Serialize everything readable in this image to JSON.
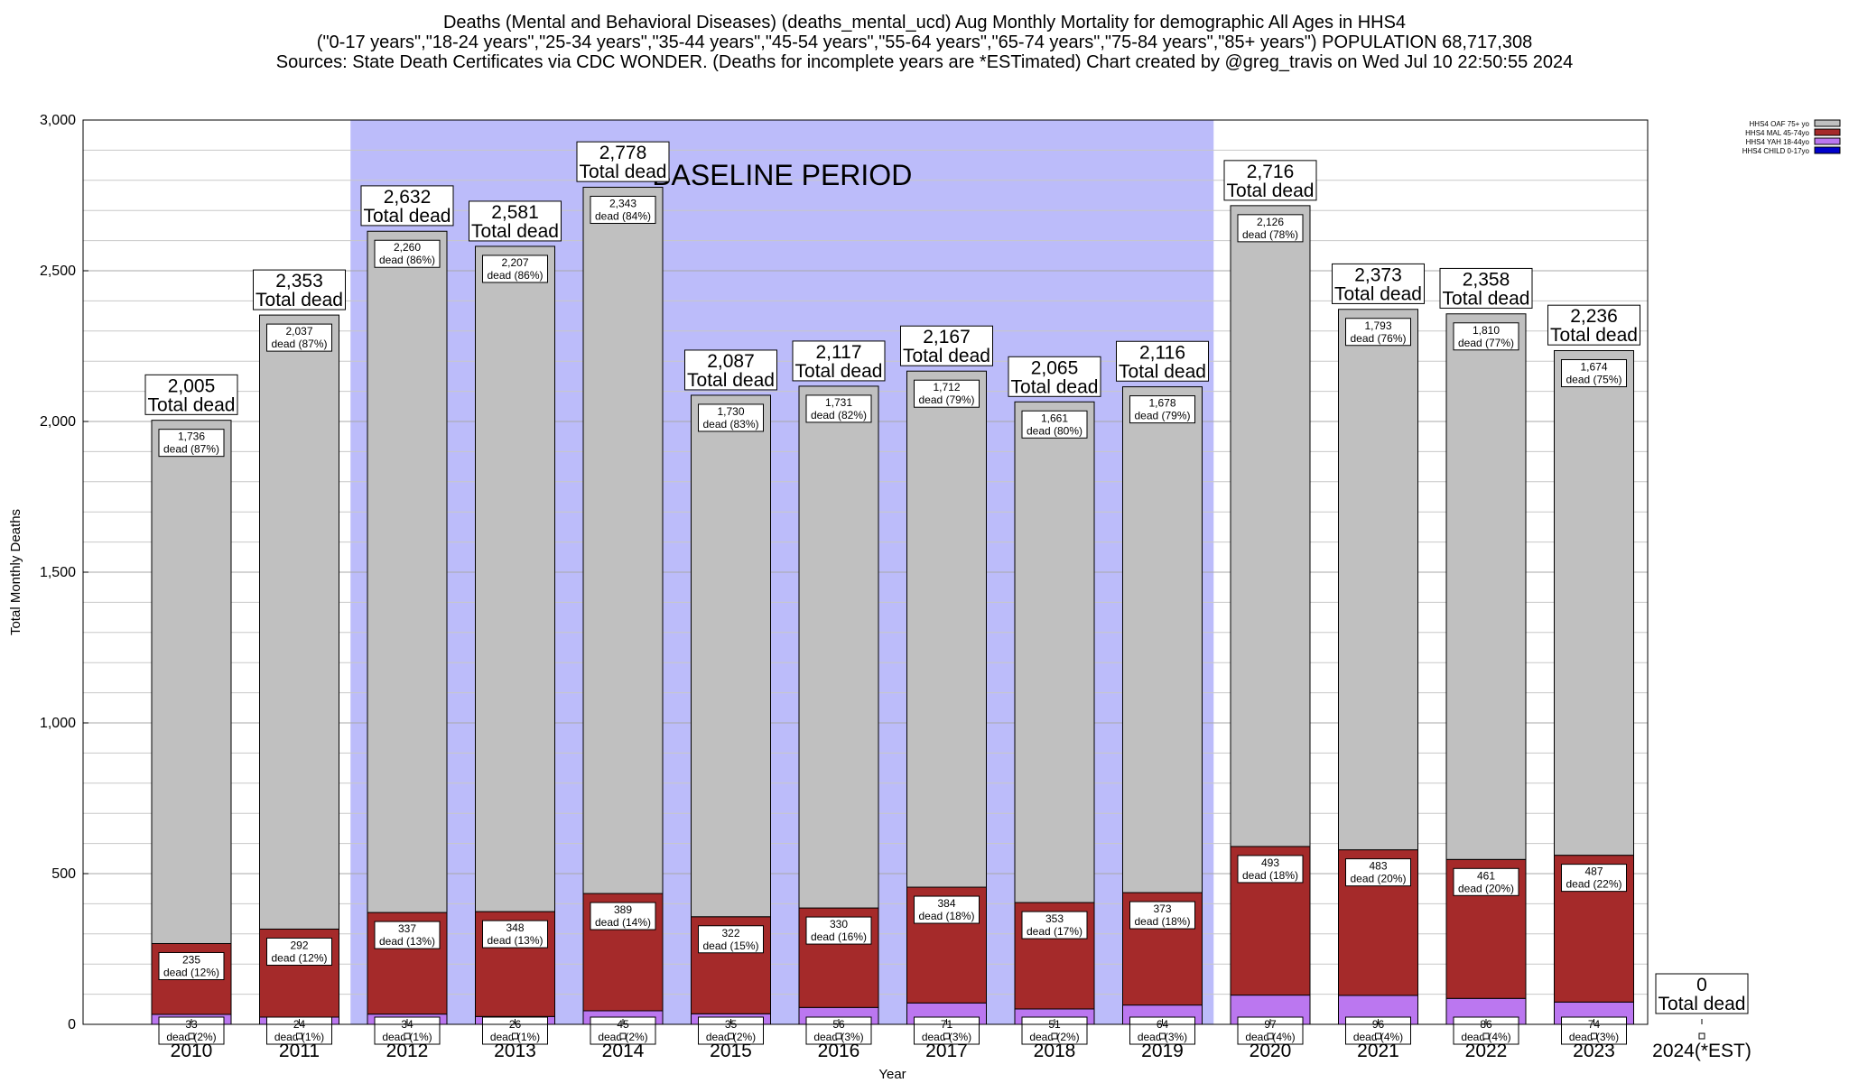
{
  "header": {
    "line1": "Deaths (Mental and Behavioral Diseases) (deaths_mental_ucd) Aug Monthly Mortality for demographic All Ages in HHS4",
    "line2": "(\"0-17 years\",\"18-24 years\",\"25-34 years\",\"35-44 years\",\"45-54 years\",\"55-64 years\",\"65-74 years\",\"75-84 years\",\"85+ years\") POPULATION 68,717,308",
    "line3": "Sources: State Death Certificates via CDC WONDER. (Deaths for incomplete years are *ESTimated)                Chart created by @greg_travis on Wed Jul 10 22:50:55 2024"
  },
  "chart_data": {
    "type": "bar",
    "stacked": true,
    "xlabel": "Year",
    "ylabel": "Total Monthly Deaths",
    "ylim": [
      0,
      3000
    ],
    "yticks": [
      0,
      500,
      1000,
      1500,
      2000,
      2500,
      3000
    ],
    "ytick_labels": [
      "0",
      "500",
      "1,000",
      "1,500",
      "2,000",
      "2,500",
      "3,000"
    ],
    "grid": true,
    "legend_position": "top-right",
    "baseline": {
      "label": "BASELINE PERIOD",
      "from": "2012",
      "to": "2019",
      "color": "#bcbcfa"
    },
    "categories": [
      "2010",
      "2011",
      "2012",
      "2013",
      "2014",
      "2015",
      "2016",
      "2017",
      "2018",
      "2019",
      "2020",
      "2021",
      "2022",
      "2023",
      "2024(*EST)"
    ],
    "total_suffix": "Total dead",
    "totals": [
      2005,
      2353,
      2632,
      2581,
      2778,
      2087,
      2117,
      2167,
      2065,
      2116,
      2716,
      2373,
      2358,
      2236,
      0
    ],
    "total_labels": [
      "2,005",
      "2,353",
      "2,632",
      "2,581",
      "2,778",
      "2,087",
      "2,117",
      "2,167",
      "2,065",
      "2,116",
      "2,716",
      "2,373",
      "2,358",
      "2,236",
      "0"
    ],
    "series": [
      {
        "name": "HHS4 CHILD 0-17yo",
        "color": "#0000cc",
        "values": [
          0,
          0,
          0,
          0,
          0,
          0,
          0,
          0,
          0,
          0,
          0,
          0,
          0,
          0,
          0
        ]
      },
      {
        "name": "HHS4 YAH 18-44yo",
        "color": "#bb77f0",
        "values": [
          33,
          24,
          34,
          26,
          45,
          35,
          56,
          71,
          51,
          64,
          97,
          96,
          86,
          74,
          0
        ],
        "labels": [
          "33\ndead (2%)",
          "24\ndead (1%)",
          "34\ndead (1%)",
          "26\ndead (1%)",
          "45\ndead (2%)",
          "35\ndead (2%)",
          "56\ndead (3%)",
          "71\ndead (3%)",
          "51\ndead (2%)",
          "64\ndead (3%)",
          "97\ndead (4%)",
          "96\ndead (4%)",
          "86\ndead (4%)",
          "74\ndead (3%)",
          ""
        ]
      },
      {
        "name": "HHS4 MAL 45-74yo",
        "color": "#a52a2a",
        "values": [
          235,
          292,
          337,
          348,
          389,
          322,
          330,
          384,
          353,
          373,
          493,
          483,
          461,
          487,
          0
        ],
        "labels": [
          "235\ndead (12%)",
          "292\ndead (12%)",
          "337\ndead (13%)",
          "348\ndead (13%)",
          "389\ndead (14%)",
          "322\ndead (15%)",
          "330\ndead (16%)",
          "384\ndead (18%)",
          "353\ndead (17%)",
          "373\ndead (18%)",
          "493\ndead (18%)",
          "483\ndead (20%)",
          "461\ndead (20%)",
          "487\ndead (22%)",
          ""
        ]
      },
      {
        "name": "HHS4 OAF 75+ yo",
        "color": "#c0c0c0",
        "values": [
          1736,
          2037,
          2260,
          2207,
          2343,
          1730,
          1731,
          1712,
          1661,
          1678,
          2126,
          1793,
          1810,
          1674,
          0
        ],
        "labels": [
          "1,736\ndead (87%)",
          "2,037\ndead (87%)",
          "2,260\ndead (86%)",
          "2,207\ndead (86%)",
          "2,343\ndead (84%)",
          "1,730\ndead (83%)",
          "1,731\ndead (82%)",
          "1,712\ndead (79%)",
          "1,661\ndead (80%)",
          "1,678\ndead (79%)",
          "2,126\ndead (78%)",
          "1,793\ndead (76%)",
          "1,810\ndead (77%)",
          "1,674\ndead (75%)",
          ""
        ]
      }
    ],
    "legend_order": [
      "HHS4 OAF 75+ yo",
      "HHS4 MAL 45-74yo",
      "HHS4 YAH 18-44yo",
      "HHS4 CHILD 0-17yo"
    ]
  }
}
